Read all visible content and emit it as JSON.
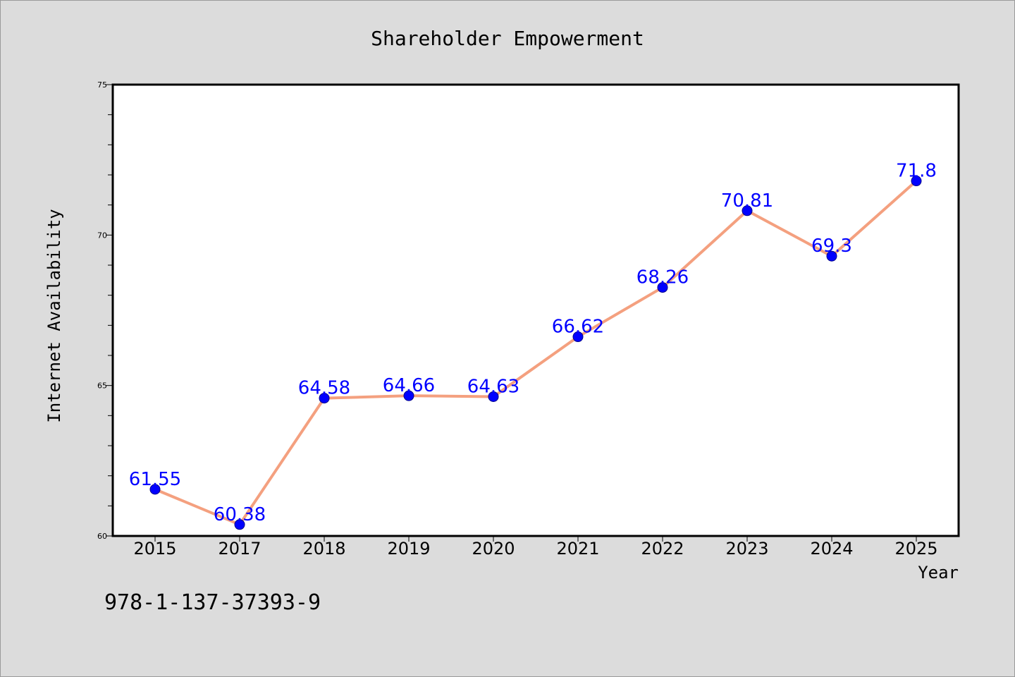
{
  "chart_data": {
    "type": "line",
    "title": "Shareholder Empowerment",
    "xlabel": "Year",
    "ylabel": "Internet Availability",
    "categories": [
      "2015",
      "2017",
      "2018",
      "2019",
      "2020",
      "2021",
      "2022",
      "2023",
      "2024",
      "2025"
    ],
    "series": [
      {
        "values": [
          61.55,
          60.38,
          64.58,
          64.66,
          64.63,
          66.62,
          68.26,
          70.81,
          69.3,
          71.8
        ],
        "data_labels": [
          "61.55",
          "60.38",
          "64.58",
          "64.66",
          "64.63",
          "66.62",
          "68.26",
          "70.81",
          "69.3",
          "71.8"
        ]
      }
    ],
    "ylim": [
      60,
      75
    ],
    "yticks": [
      "60",
      "65",
      "70",
      "75"
    ],
    "grid": false,
    "legend": "none",
    "colors": {
      "line": "#f4a07f",
      "marker": "#0000ff",
      "marker_edge": "#00008b",
      "data_label": "#0000ff",
      "background": "#dcdcdc",
      "plot_area": "#ffffff"
    }
  },
  "annotation": {
    "text": "978-1-137-37393-9"
  }
}
